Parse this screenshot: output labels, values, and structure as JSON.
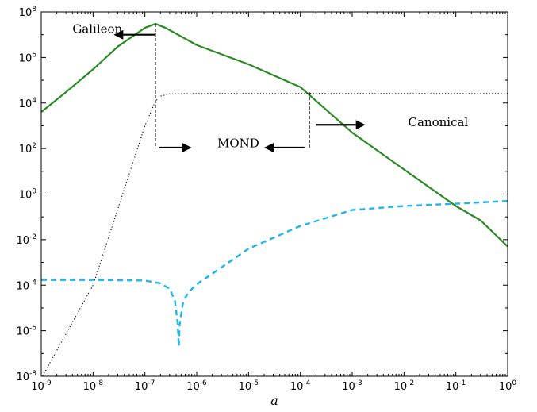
{
  "chart_data": {
    "type": "line",
    "xlabel": "a",
    "ylabel": "",
    "title": "",
    "x_scale": "log",
    "y_scale": "log",
    "xlim": [
      1e-09,
      1
    ],
    "ylim": [
      1e-08,
      100000000.0
    ],
    "grid": false,
    "x_ticks": [
      {
        "base": "10",
        "exp": "-9",
        "value": 1e-09
      },
      {
        "base": "10",
        "exp": "-8",
        "value": 1e-08
      },
      {
        "base": "10",
        "exp": "-7",
        "value": 1e-07
      },
      {
        "base": "10",
        "exp": "-6",
        "value": 1e-06
      },
      {
        "base": "10",
        "exp": "-5",
        "value": 1e-05
      },
      {
        "base": "10",
        "exp": "-4",
        "value": 0.0001
      },
      {
        "base": "10",
        "exp": "-3",
        "value": 0.001
      },
      {
        "base": "10",
        "exp": "-2",
        "value": 0.01
      },
      {
        "base": "10",
        "exp": "-1",
        "value": 0.1
      },
      {
        "base": "10",
        "exp": "0",
        "value": 1
      }
    ],
    "y_ticks": [
      {
        "base": "10",
        "exp": "-8",
        "value": 1e-08
      },
      {
        "base": "10",
        "exp": "-6",
        "value": 1e-06
      },
      {
        "base": "10",
        "exp": "-4",
        "value": 0.0001
      },
      {
        "base": "10",
        "exp": "-2",
        "value": 0.01
      },
      {
        "base": "10",
        "exp": "0",
        "value": 1
      },
      {
        "base": "10",
        "exp": "2",
        "value": 100.0
      },
      {
        "base": "10",
        "exp": "4",
        "value": 10000.0
      },
      {
        "base": "10",
        "exp": "6",
        "value": 1000000.0
      },
      {
        "base": "10",
        "exp": "8",
        "value": 100000000.0
      }
    ],
    "series": [
      {
        "color": "#2a8a23",
        "style": "solid",
        "x": [
          1e-09,
          3e-09,
          1e-08,
          3e-08,
          1e-07,
          1.6e-07,
          2.5e-07,
          1e-06,
          1e-05,
          0.0001,
          0.001,
          0.01,
          0.1,
          0.3,
          1
        ],
        "y": [
          4000.0,
          30000.0,
          300000.0,
          3000000.0,
          20000000.0,
          30000000.0,
          20000000.0,
          3500000.0,
          500000.0,
          50000.0,
          500.0,
          12.0,
          0.3,
          0.07,
          0.005
        ]
      },
      {
        "color": "#1fb5e8",
        "style": "dashed",
        "x": [
          1e-09,
          1e-08,
          1e-07,
          2e-07,
          3e-07,
          3.8e-07,
          4.3e-07,
          4.5e-07,
          4.7e-07,
          5.5e-07,
          7e-07,
          1e-06,
          3e-06,
          1e-05,
          0.0001,
          0.001,
          0.01,
          0.1,
          1
        ],
        "y": [
          0.00017,
          0.00017,
          0.00016,
          0.00012,
          7e-05,
          2e-05,
          2e-06,
          2e-07,
          2e-06,
          2e-05,
          5e-05,
          0.00011,
          0.0006,
          0.004,
          0.04,
          0.2,
          0.3,
          0.38,
          0.5
        ]
      },
      {
        "color": "#000000",
        "style": "dotted",
        "x": [
          1e-09,
          1e-08,
          1e-07,
          1.3e-07,
          1.6e-07,
          2e-07,
          3e-07,
          1e-06,
          1e-05,
          0.0001,
          0.001,
          0.01,
          0.1,
          1
        ],
        "y": [
          8e-09,
          0.0001,
          1000.0,
          4000.0,
          12000.0,
          20000.0,
          25000.0,
          26000.0,
          26000.0,
          26000.0,
          26000.0,
          26000.0,
          26000.0,
          26000.0
        ]
      }
    ],
    "annotations": [
      {
        "text": "Galileon",
        "x": 4e-09,
        "y": 18000000.0,
        "arrow_from_x": 1.6e-07,
        "arrow_to_x": 2.5e-08,
        "arrow_y": 10000000.0
      },
      {
        "text": "MOND",
        "x": 2.5e-06,
        "y": 170.0,
        "arrow_from_x": 1.9e-07,
        "arrow_to_x": 8e-07,
        "arrow_y": 110.0
      },
      {
        "text": "",
        "x": null,
        "y": null,
        "arrow_from_x": 0.00012,
        "arrow_to_x": 2e-05,
        "arrow_y": 110.0
      },
      {
        "text": "Canonical",
        "x": 0.012,
        "y": 1400.0,
        "arrow_from_x": 0.0002,
        "arrow_to_x": 0.0018,
        "arrow_y": 1100.0
      }
    ],
    "vlines": [
      {
        "x": 1.6e-07,
        "y_from": 100.0,
        "y_to": 30000000.0
      },
      {
        "x": 0.00015,
        "y_from": 100.0,
        "y_to": 30000.0
      }
    ]
  }
}
